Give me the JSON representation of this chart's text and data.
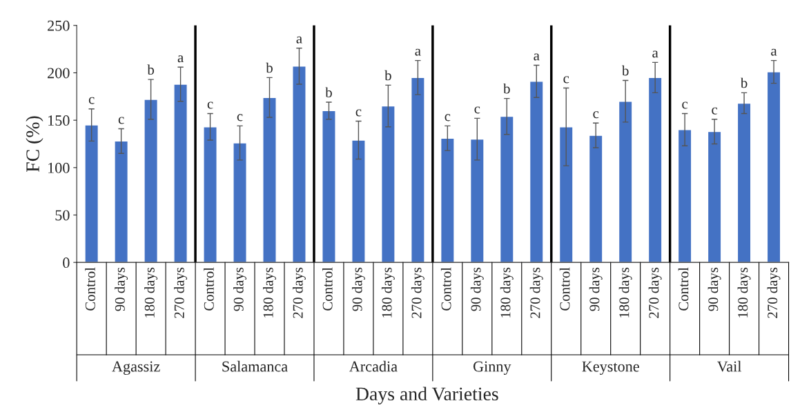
{
  "chart_data": {
    "type": "bar",
    "xlabel": "Days and Varieties",
    "ylabel": "FC (%)",
    "categories": [
      "Control",
      "90 days",
      "180 days",
      "270 days",
      "Control",
      "90 days",
      "180 days",
      "270 days",
      "Control",
      "90 days",
      "180 days",
      "270 days",
      "Control",
      "90 days",
      "180 days",
      "270 days",
      "Control",
      "90 days",
      "180 days",
      "270 days",
      "Control",
      "90 days",
      "180 days",
      "270 days"
    ],
    "values": [
      145,
      128,
      172,
      188,
      143,
      126,
      174,
      207,
      160,
      129,
      165,
      195,
      131,
      130,
      154,
      191,
      143,
      134,
      170,
      195,
      140,
      138,
      168,
      201
    ],
    "errors": [
      17,
      13,
      21,
      18,
      14,
      18,
      21,
      19,
      9,
      20,
      22,
      18,
      13,
      22,
      19,
      17,
      41,
      13,
      22,
      16,
      17,
      13,
      11,
      12
    ],
    "value_labels": [
      "c",
      "c",
      "b",
      "a",
      "c",
      "c",
      "b",
      "a",
      "b",
      "c",
      "b",
      "a",
      "c",
      "c",
      "b",
      "a",
      "c",
      "c",
      "b",
      "a",
      "c",
      "c",
      "b",
      "a"
    ],
    "annotations": [
      "Agassiz",
      "Salamanca",
      "Arcadia",
      "Ginny",
      "Keystone",
      "Vail"
    ],
    "color": "#4472c4",
    "ylim": [
      0,
      250
    ],
    "yticks": [
      0,
      50,
      100,
      150,
      200,
      250
    ],
    "grid": false
  }
}
